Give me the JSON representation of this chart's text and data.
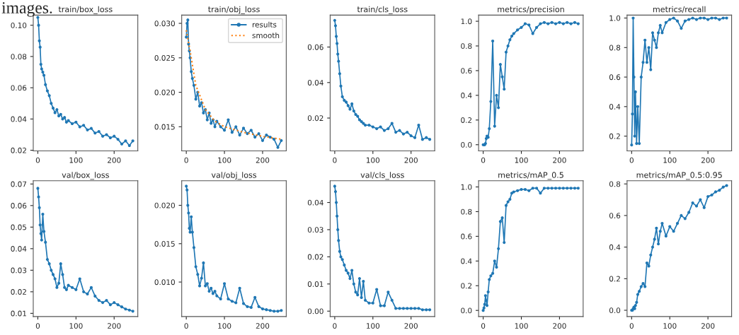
{
  "chart_data": [
    {
      "type": "line",
      "title": "train/box_loss",
      "annotations": [
        "images."
      ],
      "marker": "circle",
      "line_style": "solid",
      "grid": false,
      "legend": false,
      "xlim": [
        -12,
        262
      ],
      "xticks": [
        0,
        100,
        200
      ],
      "ylim": [
        0.0196,
        0.1065
      ],
      "yticks": [
        0.02,
        0.04,
        0.06,
        0.08,
        {
          "value": 0.1,
          "label": "0.10"
        }
      ],
      "x": [
        0,
        2,
        4,
        6,
        8,
        10,
        13,
        16,
        20,
        25,
        30,
        35,
        40,
        45,
        50,
        55,
        60,
        65,
        70,
        75,
        80,
        90,
        100,
        110,
        120,
        130,
        140,
        150,
        160,
        170,
        180,
        190,
        200,
        210,
        220,
        230,
        240,
        249
      ],
      "series": [
        {
          "color": "#1f77b4",
          "values": [
            0.105,
            0.1,
            0.09,
            0.086,
            0.075,
            0.072,
            0.07,
            0.068,
            0.062,
            0.058,
            0.055,
            0.05,
            0.047,
            0.044,
            0.046,
            0.042,
            0.043,
            0.04,
            0.041,
            0.038,
            0.039,
            0.037,
            0.038,
            0.035,
            0.036,
            0.033,
            0.034,
            0.031,
            0.032,
            0.029,
            0.03,
            0.028,
            0.029,
            0.027,
            0.024,
            0.026,
            0.023,
            0.026
          ]
        }
      ]
    },
    {
      "type": "line",
      "title": "train/obj_loss",
      "marker": "circle",
      "line_style": "solid",
      "grid": false,
      "legend": "top right",
      "xlim": [
        -12,
        262
      ],
      "xticks": [
        0,
        100,
        200
      ],
      "ylim": [
        0.0115,
        0.0312
      ],
      "yticks": [
        0.015,
        {
          "value": 0.02,
          "label": "0.020"
        },
        0.025,
        {
          "value": 0.03,
          "label": "0.030"
        }
      ],
      "x": [
        0,
        2,
        4,
        6,
        8,
        10,
        13,
        16,
        20,
        25,
        30,
        35,
        40,
        45,
        50,
        55,
        60,
        65,
        70,
        75,
        80,
        90,
        100,
        110,
        120,
        130,
        140,
        150,
        160,
        170,
        180,
        190,
        200,
        210,
        220,
        230,
        240,
        249
      ],
      "series": [
        {
          "name": "results",
          "color": "#1f77b4",
          "values": [
            0.028,
            0.03,
            0.0305,
            0.027,
            0.026,
            0.025,
            0.023,
            0.022,
            0.021,
            0.019,
            0.02,
            0.018,
            0.0185,
            0.017,
            0.0175,
            0.016,
            0.017,
            0.0155,
            0.016,
            0.015,
            0.0158,
            0.015,
            0.0145,
            0.016,
            0.0142,
            0.015,
            0.0138,
            0.0148,
            0.014,
            0.0145,
            0.0135,
            0.014,
            0.013,
            0.0138,
            0.0135,
            0.0132,
            0.012,
            0.013
          ]
        },
        {
          "name": "smooth",
          "color": "#ff7f0e",
          "line_style": "dotted",
          "marker": "none",
          "x": [
            0,
            10,
            25,
            50,
            75,
            100,
            150,
            200,
            249
          ],
          "values": [
            0.029,
            0.026,
            0.021,
            0.0175,
            0.0158,
            0.015,
            0.0142,
            0.0136,
            0.0132
          ]
        }
      ]
    },
    {
      "type": "line",
      "title": "train/cls_loss",
      "marker": "circle",
      "line_style": "solid",
      "grid": false,
      "legend": false,
      "xlim": [
        -12,
        262
      ],
      "xticks": [
        0,
        100,
        200
      ],
      "ylim": [
        0.0015,
        0.078
      ],
      "yticks": [
        0.02,
        0.04,
        0.06
      ],
      "x": [
        0,
        2,
        4,
        6,
        8,
        10,
        13,
        16,
        20,
        25,
        30,
        35,
        40,
        45,
        50,
        55,
        60,
        65,
        70,
        75,
        80,
        90,
        100,
        110,
        120,
        130,
        140,
        150,
        160,
        170,
        180,
        190,
        200,
        210,
        220,
        230,
        240,
        249
      ],
      "series": [
        {
          "color": "#1f77b4",
          "values": [
            0.075,
            0.072,
            0.066,
            0.062,
            0.056,
            0.052,
            0.045,
            0.038,
            0.032,
            0.03,
            0.029,
            0.027,
            0.025,
            0.028,
            0.024,
            0.022,
            0.021,
            0.019,
            0.018,
            0.017,
            0.016,
            0.016,
            0.015,
            0.014,
            0.015,
            0.013,
            0.014,
            0.017,
            0.012,
            0.013,
            0.011,
            0.012,
            0.01,
            0.009,
            0.016,
            0.008,
            0.009,
            0.008
          ]
        }
      ]
    },
    {
      "type": "line",
      "title": "metrics/precision",
      "marker": "circle",
      "line_style": "solid",
      "grid": false,
      "legend": false,
      "xlim": [
        -12,
        262
      ],
      "xticks": [
        0,
        100,
        200
      ],
      "ylim": [
        -0.05,
        1.05
      ],
      "yticks": [
        {
          "value": 0,
          "label": "0.0"
        },
        0.2,
        0.4,
        0.6,
        0.8,
        {
          "value": 1,
          "label": "1.0"
        }
      ],
      "x": [
        0,
        2,
        4,
        6,
        8,
        10,
        13,
        16,
        20,
        25,
        30,
        35,
        40,
        45,
        50,
        55,
        60,
        65,
        70,
        75,
        80,
        90,
        100,
        110,
        120,
        130,
        140,
        150,
        160,
        170,
        180,
        190,
        200,
        210,
        220,
        230,
        240,
        249
      ],
      "series": [
        {
          "color": "#1f77b4",
          "values": [
            0,
            0,
            0,
            0.01,
            0.05,
            0.07,
            0.06,
            0.13,
            0.35,
            0.84,
            0.15,
            0.4,
            0.3,
            0.65,
            0.55,
            0.45,
            0.75,
            0.8,
            0.85,
            0.88,
            0.9,
            0.93,
            0.95,
            0.98,
            0.97,
            0.9,
            0.95,
            0.98,
            0.99,
            0.98,
            0.99,
            0.98,
            0.99,
            0.98,
            0.99,
            0.98,
            0.99,
            0.98
          ]
        }
      ]
    },
    {
      "type": "line",
      "title": "metrics/recall",
      "marker": "circle",
      "line_style": "solid",
      "grid": false,
      "legend": false,
      "xlim": [
        -12,
        262
      ],
      "xticks": [
        0,
        100,
        200
      ],
      "ylim": [
        0.1,
        1.02
      ],
      "yticks": [
        0.2,
        0.4,
        0.6,
        0.8,
        {
          "value": 1,
          "label": "1.0"
        }
      ],
      "x": [
        0,
        2,
        4,
        6,
        8,
        10,
        13,
        16,
        20,
        25,
        30,
        35,
        40,
        45,
        50,
        55,
        60,
        65,
        70,
        75,
        80,
        90,
        100,
        110,
        120,
        130,
        140,
        150,
        160,
        170,
        180,
        190,
        200,
        210,
        220,
        230,
        240,
        249
      ],
      "series": [
        {
          "color": "#1f77b4",
          "values": [
            0.14,
            0.35,
            1.0,
            0.6,
            0.2,
            0.5,
            0.15,
            0.4,
            0.15,
            0.6,
            0.7,
            0.85,
            0.7,
            0.8,
            0.65,
            0.9,
            0.85,
            0.8,
            0.9,
            0.95,
            0.9,
            0.97,
            0.99,
            1.0,
            0.98,
            0.93,
            0.98,
            0.99,
            1.0,
            0.99,
            1.0,
            1.0,
            0.99,
            1.0,
            1.0,
            0.99,
            1.0,
            1.0
          ]
        }
      ]
    },
    {
      "type": "line",
      "title": "val/box_loss",
      "marker": "circle",
      "line_style": "solid",
      "grid": false,
      "legend": false,
      "xlim": [
        -12,
        262
      ],
      "xticks": [
        0,
        100,
        200
      ],
      "ylim": [
        0.0085,
        0.0715
      ],
      "yticks": [
        0.01,
        0.02,
        0.03,
        0.04,
        0.05,
        0.06,
        0.07
      ],
      "x": [
        0,
        2,
        4,
        6,
        8,
        10,
        13,
        16,
        20,
        25,
        30,
        35,
        40,
        45,
        50,
        55,
        60,
        65,
        70,
        75,
        80,
        90,
        100,
        110,
        120,
        130,
        140,
        150,
        160,
        170,
        180,
        190,
        200,
        210,
        220,
        230,
        240,
        249
      ],
      "series": [
        {
          "color": "#1f77b4",
          "values": [
            0.068,
            0.064,
            0.059,
            0.051,
            0.047,
            0.044,
            0.056,
            0.048,
            0.043,
            0.035,
            0.033,
            0.03,
            0.028,
            0.026,
            0.022,
            0.024,
            0.033,
            0.028,
            0.022,
            0.021,
            0.023,
            0.022,
            0.021,
            0.026,
            0.02,
            0.019,
            0.022,
            0.018,
            0.016,
            0.015,
            0.016,
            0.014,
            0.015,
            0.014,
            0.013,
            0.012,
            0.0115,
            0.011
          ]
        }
      ]
    },
    {
      "type": "line",
      "title": "val/obj_loss",
      "marker": "circle",
      "line_style": "solid",
      "grid": false,
      "legend": false,
      "xlim": [
        -12,
        262
      ],
      "xticks": [
        0,
        100,
        200
      ],
      "ylim": [
        0.0055,
        0.0232
      ],
      "yticks": [
        {
          "value": 0.01,
          "label": "0.010"
        },
        0.015,
        {
          "value": 0.02,
          "label": "0.020"
        }
      ],
      "x": [
        0,
        2,
        4,
        6,
        8,
        10,
        13,
        16,
        20,
        25,
        30,
        35,
        40,
        45,
        50,
        55,
        60,
        65,
        70,
        75,
        80,
        90,
        100,
        110,
        120,
        130,
        140,
        150,
        160,
        170,
        180,
        190,
        200,
        210,
        220,
        230,
        240,
        249
      ],
      "series": [
        {
          "color": "#1f77b4",
          "values": [
            0.0225,
            0.022,
            0.02,
            0.019,
            0.017,
            0.0165,
            0.0185,
            0.0165,
            0.0145,
            0.012,
            0.011,
            0.0095,
            0.0105,
            0.0125,
            0.0095,
            0.0098,
            0.0088,
            0.0092,
            0.0085,
            0.0088,
            0.0082,
            0.0078,
            0.0098,
            0.0078,
            0.0075,
            0.0073,
            0.0092,
            0.0072,
            0.0068,
            0.0067,
            0.008,
            0.0068,
            0.0065,
            0.0064,
            0.0063,
            0.0062,
            0.0062,
            0.0063
          ]
        }
      ]
    },
    {
      "type": "line",
      "title": "val/cls_loss",
      "marker": "circle",
      "line_style": "solid",
      "grid": false,
      "legend": false,
      "xlim": [
        -12,
        262
      ],
      "xticks": [
        0,
        100,
        200
      ],
      "ylim": [
        -0.002,
        0.048
      ],
      "yticks": [
        {
          "value": 0,
          "label": "0.00"
        },
        0.01,
        0.02,
        0.03,
        0.04
      ],
      "x": [
        0,
        2,
        4,
        6,
        8,
        10,
        13,
        16,
        20,
        25,
        30,
        35,
        40,
        45,
        50,
        55,
        60,
        65,
        70,
        75,
        80,
        90,
        100,
        110,
        120,
        130,
        140,
        150,
        160,
        170,
        180,
        190,
        200,
        210,
        220,
        230,
        240,
        249
      ],
      "series": [
        {
          "color": "#1f77b4",
          "values": [
            0.046,
            0.044,
            0.04,
            0.035,
            0.03,
            0.026,
            0.022,
            0.02,
            0.019,
            0.017,
            0.015,
            0.014,
            0.012,
            0.015,
            0.01,
            0.007,
            0.006,
            0.012,
            0.005,
            0.011,
            0.004,
            0.003,
            0.003,
            0.008,
            0.002,
            0.002,
            0.007,
            0.004,
            0.001,
            0.001,
            0.001,
            0.001,
            0.001,
            0.001,
            0.001,
            0.0005,
            0.0005,
            0.0005
          ]
        }
      ]
    },
    {
      "type": "line",
      "title": "metrics/mAP_0.5",
      "marker": "circle",
      "line_style": "solid",
      "grid": false,
      "legend": false,
      "xlim": [
        -12,
        262
      ],
      "xticks": [
        0,
        100,
        200
      ],
      "ylim": [
        -0.05,
        1.05
      ],
      "yticks": [
        {
          "value": 0,
          "label": "0.0"
        },
        0.2,
        0.4,
        0.6,
        0.8,
        {
          "value": 1,
          "label": "1.0"
        }
      ],
      "x": [
        0,
        2,
        4,
        6,
        8,
        10,
        13,
        16,
        20,
        25,
        30,
        35,
        40,
        45,
        50,
        55,
        60,
        65,
        70,
        75,
        80,
        90,
        100,
        110,
        120,
        130,
        140,
        150,
        160,
        170,
        180,
        190,
        200,
        210,
        220,
        230,
        240,
        249
      ],
      "series": [
        {
          "color": "#1f77b4",
          "values": [
            0,
            0.02,
            0.05,
            0.12,
            0.08,
            0.04,
            0.15,
            0.25,
            0.28,
            0.3,
            0.4,
            0.35,
            0.5,
            0.72,
            0.75,
            0.55,
            0.85,
            0.88,
            0.9,
            0.95,
            0.96,
            0.97,
            0.98,
            0.98,
            0.97,
            0.99,
            0.99,
            0.95,
            0.99,
            0.99,
            0.99,
            0.99,
            0.99,
            0.99,
            0.99,
            0.99,
            0.99,
            0.99
          ]
        }
      ]
    },
    {
      "type": "line",
      "title": "metrics/mAP_0.5:0.95",
      "marker": "circle",
      "line_style": "solid",
      "grid": false,
      "legend": false,
      "xlim": [
        -12,
        262
      ],
      "xticks": [
        0,
        100,
        200
      ],
      "ylim": [
        -0.04,
        0.82
      ],
      "yticks": [
        {
          "value": 0,
          "label": "0.0"
        },
        0.2,
        0.4,
        0.6,
        0.8
      ],
      "x": [
        0,
        2,
        4,
        6,
        8,
        10,
        13,
        16,
        20,
        25,
        30,
        35,
        40,
        45,
        50,
        55,
        60,
        65,
        70,
        75,
        80,
        90,
        100,
        110,
        120,
        130,
        140,
        150,
        160,
        170,
        180,
        190,
        200,
        210,
        220,
        230,
        240,
        249
      ],
      "series": [
        {
          "color": "#1f77b4",
          "values": [
            0,
            0,
            0.01,
            0.02,
            0.01,
            0.03,
            0.05,
            0.1,
            0.12,
            0.15,
            0.17,
            0.15,
            0.3,
            0.28,
            0.35,
            0.4,
            0.45,
            0.52,
            0.42,
            0.5,
            0.55,
            0.47,
            0.53,
            0.5,
            0.55,
            0.6,
            0.58,
            0.62,
            0.68,
            0.66,
            0.7,
            0.65,
            0.72,
            0.73,
            0.75,
            0.76,
            0.78,
            0.79
          ]
        }
      ]
    }
  ]
}
